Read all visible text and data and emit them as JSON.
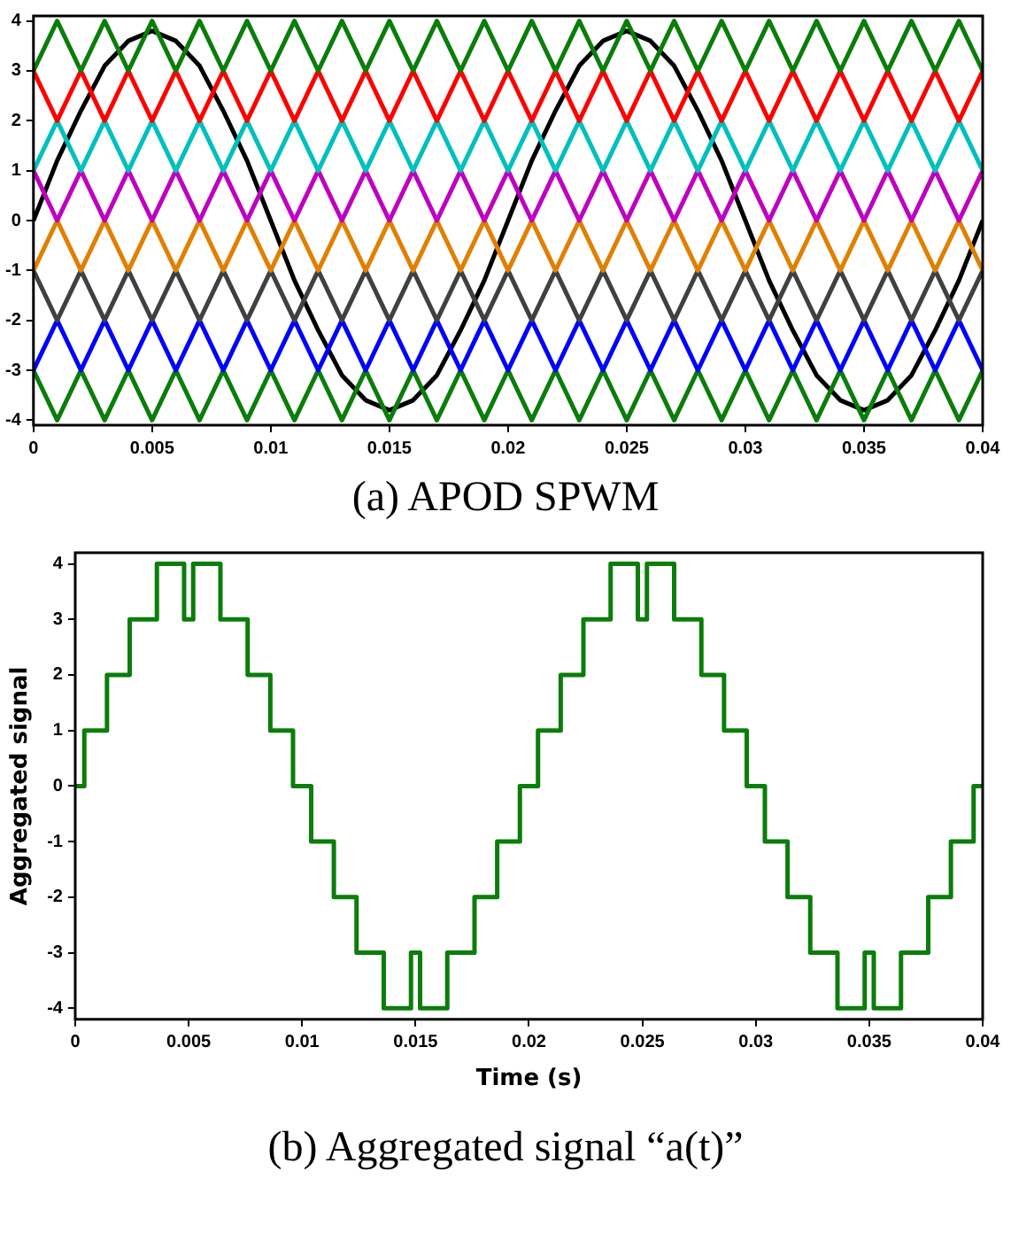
{
  "chart_data": [
    {
      "type": "line",
      "title": "(a)  APOD SPWM",
      "x": [
        0,
        0.001,
        0.002,
        0.003,
        0.004,
        0.005,
        0.006,
        0.007,
        0.008,
        0.009,
        0.01,
        0.011,
        0.012,
        0.013,
        0.014,
        0.015,
        0.016,
        0.017,
        0.018,
        0.019,
        0.02,
        0.021,
        0.022,
        0.023,
        0.024,
        0.025,
        0.026,
        0.027,
        0.028,
        0.029,
        0.03,
        0.031,
        0.032,
        0.033,
        0.034,
        0.035,
        0.036,
        0.037,
        0.038,
        0.039,
        0.04
      ],
      "series": [
        {
          "color": "#0a7d0a",
          "values": [
            3,
            4,
            3,
            4,
            3,
            4,
            3,
            4,
            3,
            4,
            3,
            4,
            3,
            4,
            3,
            4,
            3,
            4,
            3,
            4,
            3,
            4,
            3,
            4,
            3,
            4,
            3,
            4,
            3,
            4,
            3,
            4,
            3,
            4,
            3,
            4,
            3,
            4,
            3,
            4,
            3
          ]
        },
        {
          "color": "#ff0000",
          "values": [
            3,
            2,
            3,
            2,
            3,
            2,
            3,
            2,
            3,
            2,
            3,
            2,
            3,
            2,
            3,
            2,
            3,
            2,
            3,
            2,
            3,
            2,
            3,
            2,
            3,
            2,
            3,
            2,
            3,
            2,
            3,
            2,
            3,
            2,
            3,
            2,
            3,
            2,
            3,
            2,
            3
          ]
        },
        {
          "color": "#00bfbf",
          "values": [
            1,
            2,
            1,
            2,
            1,
            2,
            1,
            2,
            1,
            2,
            1,
            2,
            1,
            2,
            1,
            2,
            1,
            2,
            1,
            2,
            1,
            2,
            1,
            2,
            1,
            2,
            1,
            2,
            1,
            2,
            1,
            2,
            1,
            2,
            1,
            2,
            1,
            2,
            1,
            2,
            1
          ]
        },
        {
          "color": "#bf00bf",
          "values": [
            1,
            0,
            1,
            0,
            1,
            0,
            1,
            0,
            1,
            0,
            1,
            0,
            1,
            0,
            1,
            0,
            1,
            0,
            1,
            0,
            1,
            0,
            1,
            0,
            1,
            0,
            1,
            0,
            1,
            0,
            1,
            0,
            1,
            0,
            1,
            0,
            1,
            0,
            1,
            0,
            1
          ]
        },
        {
          "color": "#e08000",
          "values": [
            -1,
            0,
            -1,
            0,
            -1,
            0,
            -1,
            0,
            -1,
            0,
            -1,
            0,
            -1,
            0,
            -1,
            0,
            -1,
            0,
            -1,
            0,
            -1,
            0,
            -1,
            0,
            -1,
            0,
            -1,
            0,
            -1,
            0,
            -1,
            0,
            -1,
            0,
            -1,
            0,
            -1,
            0,
            -1,
            0,
            -1
          ]
        },
        {
          "color": "#404040",
          "values": [
            -1,
            -2,
            -1,
            -2,
            -1,
            -2,
            -1,
            -2,
            -1,
            -2,
            -1,
            -2,
            -1,
            -2,
            -1,
            -2,
            -1,
            -2,
            -1,
            -2,
            -1,
            -2,
            -1,
            -2,
            -1,
            -2,
            -1,
            -2,
            -1,
            -2,
            -1,
            -2,
            -1,
            -2,
            -1,
            -2,
            -1,
            -2,
            -1,
            -2,
            -1
          ]
        },
        {
          "color": "#0000ff",
          "values": [
            -3,
            -2,
            -3,
            -2,
            -3,
            -2,
            -3,
            -2,
            -3,
            -2,
            -3,
            -2,
            -3,
            -2,
            -3,
            -2,
            -3,
            -2,
            -3,
            -2,
            -3,
            -2,
            -3,
            -2,
            -3,
            -2,
            -3,
            -2,
            -3,
            -2,
            -3,
            -2,
            -3,
            -2,
            -3,
            -2,
            -3,
            -2,
            -3,
            -2,
            -3
          ]
        },
        {
          "color": "#0a7d0a",
          "values": [
            -3,
            -4,
            -3,
            -4,
            -3,
            -4,
            -3,
            -4,
            -3,
            -4,
            -3,
            -4,
            -3,
            -4,
            -3,
            -4,
            -3,
            -4,
            -3,
            -4,
            -3,
            -4,
            -3,
            -4,
            -3,
            -4,
            -3,
            -4,
            -3,
            -4,
            -3,
            -4,
            -3,
            -4,
            -3,
            -4,
            -3,
            -4,
            -3,
            -4,
            -3
          ]
        },
        {
          "color": "#000000",
          "values": [
            0,
            1.2,
            2.2,
            3.1,
            3.6,
            3.8,
            3.6,
            3.1,
            2.2,
            1.2,
            0,
            -1.2,
            -2.2,
            -3.1,
            -3.6,
            -3.8,
            -3.6,
            -3.1,
            -2.2,
            -1.2,
            0,
            1.2,
            2.2,
            3.1,
            3.6,
            3.8,
            3.6,
            3.1,
            2.2,
            1.2,
            0,
            -1.2,
            -2.2,
            -3.1,
            -3.6,
            -3.8,
            -3.6,
            -3.1,
            -2.2,
            -1.2,
            0
          ]
        }
      ],
      "xlim": [
        0,
        0.04
      ],
      "xticks": [
        0,
        0.005,
        0.01,
        0.015,
        0.02,
        0.025,
        0.03,
        0.035,
        0.04
      ],
      "ylim": [
        -4.1,
        4.1
      ],
      "yticks": [
        -4,
        -3,
        -2,
        -1,
        0,
        1,
        2,
        3,
        4
      ],
      "grid": false,
      "legend": false,
      "marker": "none"
    },
    {
      "type": "step",
      "title": "(b)  Aggregated signal “a(t)”",
      "xlabel": "Time (s)",
      "ylabel": "Aggregated signal",
      "x": [
        0,
        0.0004,
        0.0014,
        0.0024,
        0.0036,
        0.0048,
        0.0052,
        0.0064,
        0.0076,
        0.0086,
        0.0096,
        0.0104,
        0.0114,
        0.0124,
        0.0136,
        0.0148,
        0.0152,
        0.0164,
        0.0176,
        0.0186,
        0.0196,
        0.0204,
        0.0214,
        0.0224,
        0.0236,
        0.0248,
        0.0252,
        0.0264,
        0.0276,
        0.0286,
        0.0296,
        0.0304,
        0.0314,
        0.0324,
        0.0336,
        0.0348,
        0.0352,
        0.0364,
        0.0376,
        0.0386,
        0.0396,
        0.04
      ],
      "series": [
        {
          "color": "#0a7d0a",
          "values": [
            0,
            1,
            2,
            3,
            4,
            3,
            4,
            3,
            2,
            1,
            0,
            -1,
            -2,
            -3,
            -4,
            -3,
            -4,
            -3,
            -2,
            -1,
            0,
            1,
            2,
            3,
            4,
            3,
            4,
            3,
            2,
            1,
            0,
            -1,
            -2,
            -3,
            -4,
            -3,
            -4,
            -3,
            -2,
            -1,
            0,
            0
          ]
        }
      ],
      "xlim": [
        0,
        0.04
      ],
      "xticks": [
        0,
        0.005,
        0.01,
        0.015,
        0.02,
        0.025,
        0.03,
        0.035,
        0.04
      ],
      "ylim": [
        -4.2,
        4.2
      ],
      "yticks": [
        -4,
        -3,
        -2,
        -1,
        0,
        1,
        2,
        3,
        4
      ],
      "grid": false,
      "legend": false,
      "marker": "none"
    }
  ]
}
